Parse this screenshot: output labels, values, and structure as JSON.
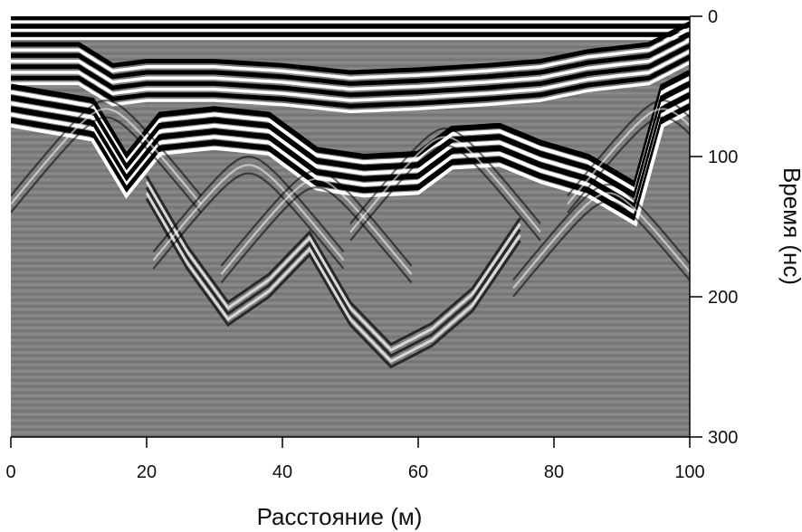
{
  "chart_data": {
    "type": "heatmap",
    "title": "",
    "xlabel": "Расстояние (м)",
    "ylabel": "Время (нс)",
    "xlim": [
      0,
      100
    ],
    "ylim": [
      300,
      0
    ],
    "x_ticks": [
      0,
      20,
      40,
      60,
      80,
      100
    ],
    "y_ticks": [
      0,
      100,
      200,
      300
    ],
    "x_tick_labels": [
      "0",
      "20",
      "40",
      "60",
      "80",
      "100"
    ],
    "y_tick_labels": [
      "0",
      "100",
      "200",
      "300"
    ],
    "y_axis_side": "right",
    "grid": false,
    "legend": "none",
    "colormap": "grayscale",
    "surface_horizon_time_ns": [
      {
        "x": 0,
        "t": 20
      },
      {
        "x": 10,
        "t": 20
      },
      {
        "x": 15,
        "t": 35
      },
      {
        "x": 20,
        "t": 32
      },
      {
        "x": 30,
        "t": 32
      },
      {
        "x": 40,
        "t": 35
      },
      {
        "x": 50,
        "t": 40
      },
      {
        "x": 60,
        "t": 38
      },
      {
        "x": 70,
        "t": 35
      },
      {
        "x": 78,
        "t": 32
      },
      {
        "x": 85,
        "t": 25
      },
      {
        "x": 94,
        "t": 20
      },
      {
        "x": 100,
        "t": 5
      }
    ],
    "channel_base_time_ns": [
      {
        "x": 0,
        "t": 60
      },
      {
        "x": 12,
        "t": 70
      },
      {
        "x": 17,
        "t": 110
      },
      {
        "x": 22,
        "t": 80
      },
      {
        "x": 30,
        "t": 76
      },
      {
        "x": 38,
        "t": 80
      },
      {
        "x": 45,
        "t": 105
      },
      {
        "x": 52,
        "t": 110
      },
      {
        "x": 60,
        "t": 108
      },
      {
        "x": 65,
        "t": 90
      },
      {
        "x": 72,
        "t": 88
      },
      {
        "x": 78,
        "t": 100
      },
      {
        "x": 85,
        "t": 110
      },
      {
        "x": 92,
        "t": 130
      },
      {
        "x": 96,
        "t": 60
      },
      {
        "x": 100,
        "t": 50
      }
    ],
    "deep_reflector_time_ns": [
      {
        "x": 20,
        "t": 120
      },
      {
        "x": 26,
        "t": 170
      },
      {
        "x": 32,
        "t": 210
      },
      {
        "x": 38,
        "t": 190
      },
      {
        "x": 44,
        "t": 160
      },
      {
        "x": 50,
        "t": 210
      },
      {
        "x": 56,
        "t": 240
      },
      {
        "x": 62,
        "t": 225
      },
      {
        "x": 68,
        "t": 200
      },
      {
        "x": 75,
        "t": 150
      }
    ]
  },
  "colors": {
    "background": "#ffffff",
    "radargram_gray": "#808080",
    "ink": "#000000"
  }
}
